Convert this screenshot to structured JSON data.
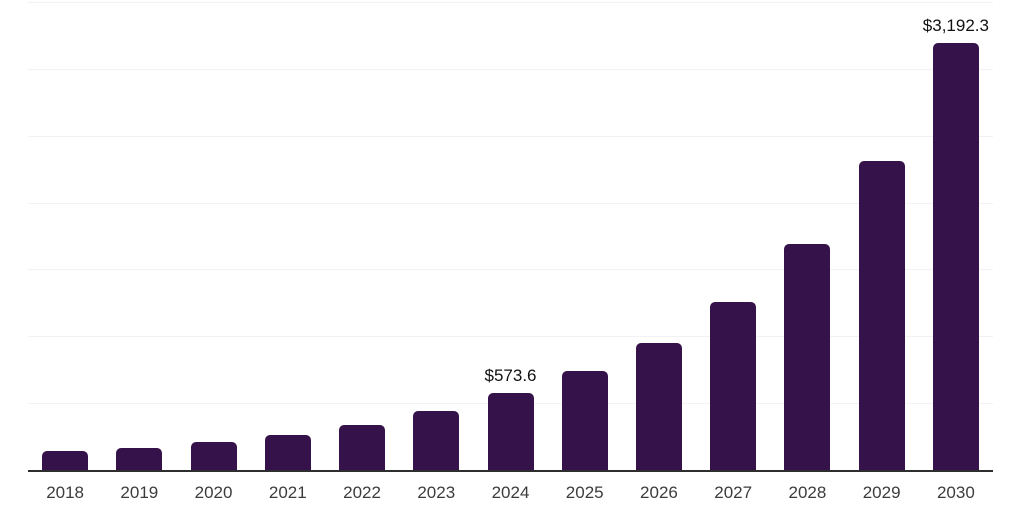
{
  "chart_data": {
    "type": "bar",
    "title": "",
    "xlabel": "",
    "ylabel": "",
    "categories": [
      "2018",
      "2019",
      "2020",
      "2021",
      "2022",
      "2023",
      "2024",
      "2025",
      "2026",
      "2027",
      "2028",
      "2029",
      "2030"
    ],
    "values": [
      140,
      168,
      213,
      264,
      335,
      440,
      573.6,
      740,
      948,
      1255,
      1688,
      2310,
      3192.3
    ],
    "data_labels": [
      "",
      "",
      "",
      "",
      "",
      "",
      "$573.6",
      "",
      "",
      "",
      "",
      "",
      "$3,192.3"
    ],
    "ylim": [
      0,
      3500
    ],
    "gridline_interval": 500,
    "grid": "horizontal",
    "legend": "none",
    "colors": {
      "bar": "#36124a",
      "axis_line": "#2e2e2e",
      "gridline": "#f2f2f5",
      "tick_label": "#3c3c3c",
      "data_label": "#111111",
      "background": "#ffffff"
    }
  }
}
